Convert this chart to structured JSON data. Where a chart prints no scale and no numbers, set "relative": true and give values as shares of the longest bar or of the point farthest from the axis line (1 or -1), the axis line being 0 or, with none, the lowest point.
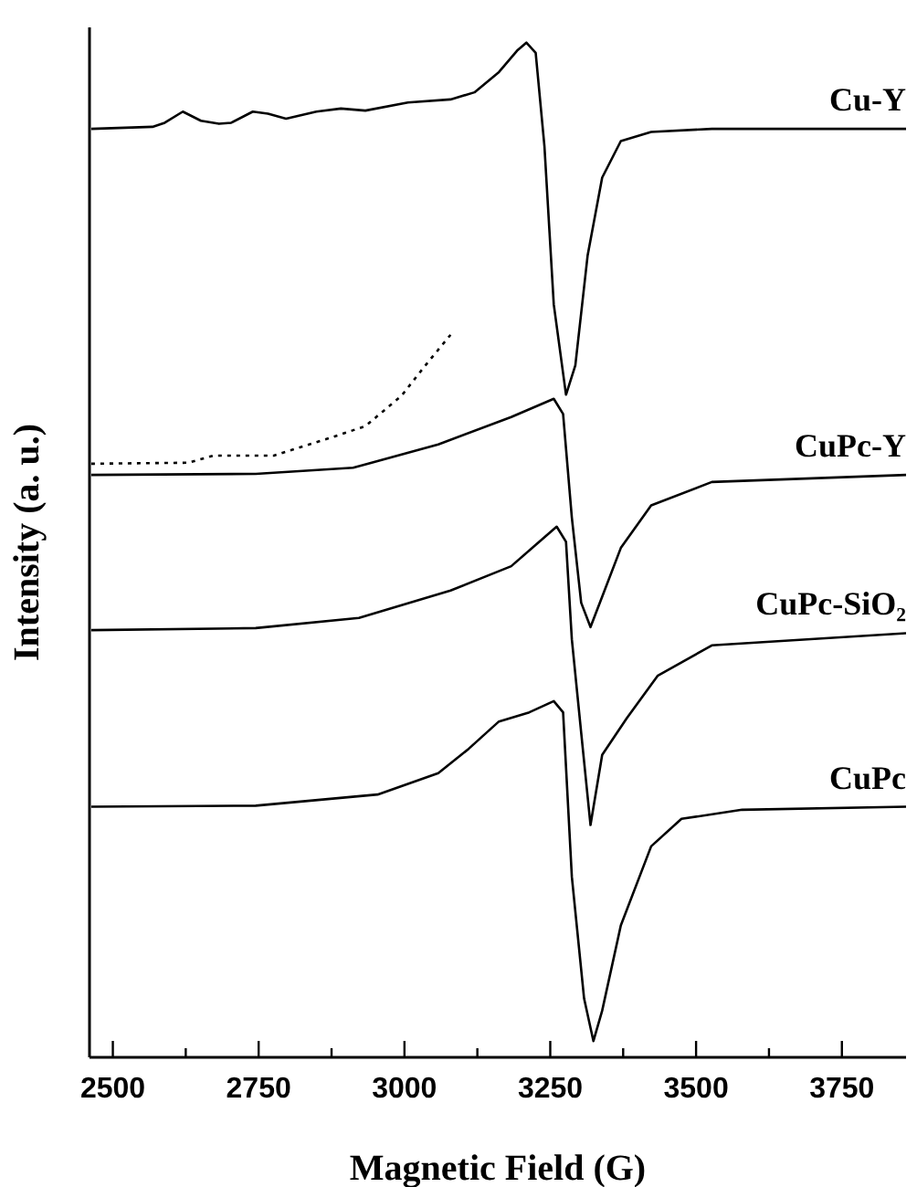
{
  "chart_data": {
    "type": "line",
    "xlabel": "Magnetic Field (G)",
    "ylabel": "Intensity (a. u.)",
    "relative": true,
    "xlim": [
      2460,
      3860
    ],
    "xticks": [
      2500,
      {
        "value": 2625,
        "label": null
      },
      2750,
      {
        "value": 2875,
        "label": null
      },
      3000,
      {
        "value": 3125,
        "label": null
      },
      3250,
      {
        "value": 3375,
        "label": null
      },
      3500,
      {
        "value": 3625,
        "label": null
      },
      3750
    ],
    "grid": false,
    "legend": false,
    "marker": "none",
    "line_style": "solid",
    "series": [
      {
        "name": "Cu-Y",
        "color": "#000000",
        "x": [
          2463,
          2568,
          2589,
          2620,
          2651,
          2682,
          2703,
          2740,
          2766,
          2797,
          2849,
          2891,
          2933,
          3006,
          3079,
          3120,
          3162,
          3193,
          3209,
          3225,
          3240,
          3256,
          3277,
          3293,
          3314,
          3339,
          3371,
          3423,
          3527,
          3860
        ],
        "values": [
          0.915,
          0.917,
          0.921,
          0.932,
          0.923,
          0.92,
          0.921,
          0.932,
          0.93,
          0.925,
          0.932,
          0.935,
          0.933,
          0.941,
          0.944,
          0.951,
          0.971,
          0.992,
          1.0,
          0.99,
          0.898,
          0.742,
          0.653,
          0.682,
          0.79,
          0.867,
          0.903,
          0.912,
          0.915,
          0.915
        ]
      },
      {
        "color": "#000000",
        "line_style": "dotted",
        "x": [
          2463,
          2630,
          2672,
          2776,
          2870,
          2933,
          2995,
          3036,
          3079
        ],
        "values": [
          0.585,
          0.586,
          0.593,
          0.593,
          0.61,
          0.622,
          0.652,
          0.682,
          0.712
        ]
      },
      {
        "name": "CuPc-Y",
        "color": "#000000",
        "x": [
          2463,
          2745,
          2912,
          3058,
          3183,
          3256,
          3272,
          3287,
          3303,
          3319,
          3339,
          3371,
          3423,
          3527,
          3860
        ],
        "values": [
          0.574,
          0.575,
          0.581,
          0.604,
          0.631,
          0.649,
          0.634,
          0.532,
          0.448,
          0.424,
          0.454,
          0.502,
          0.544,
          0.567,
          0.574
        ]
      },
      {
        "name": "CuPc-SiO₂",
        "color": "#000000",
        "x": [
          2463,
          2745,
          2922,
          3079,
          3183,
          3225,
          3261,
          3277,
          3287,
          3303,
          3319,
          3339,
          3381,
          3434,
          3527,
          3860
        ],
        "values": [
          0.421,
          0.423,
          0.433,
          0.46,
          0.484,
          0.505,
          0.523,
          0.508,
          0.412,
          0.32,
          0.229,
          0.298,
          0.334,
          0.376,
          0.406,
          0.418
        ]
      },
      {
        "name": "CuPc",
        "color": "#000000",
        "x": [
          2463,
          2745,
          2954,
          3058,
          3110,
          3162,
          3214,
          3256,
          3272,
          3287,
          3308,
          3324,
          3339,
          3371,
          3423,
          3475,
          3579,
          3860
        ],
        "values": [
          0.247,
          0.248,
          0.259,
          0.28,
          0.304,
          0.331,
          0.34,
          0.351,
          0.34,
          0.178,
          0.058,
          0.016,
          0.046,
          0.13,
          0.208,
          0.235,
          0.244,
          0.247
        ]
      }
    ]
  }
}
